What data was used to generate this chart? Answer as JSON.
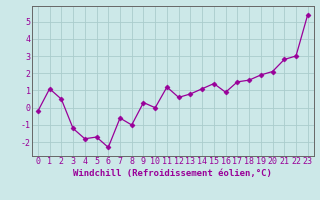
{
  "x": [
    0,
    1,
    2,
    3,
    4,
    5,
    6,
    7,
    8,
    9,
    10,
    11,
    12,
    13,
    14,
    15,
    16,
    17,
    18,
    19,
    20,
    21,
    22,
    23
  ],
  "y": [
    -0.2,
    1.1,
    0.5,
    -1.2,
    -1.8,
    -1.7,
    -2.3,
    -0.6,
    -1.0,
    0.3,
    0.0,
    1.2,
    0.6,
    0.8,
    1.1,
    1.4,
    0.9,
    1.5,
    1.6,
    1.9,
    2.1,
    2.8,
    3.0,
    5.4
  ],
  "line_color": "#990099",
  "marker": "D",
  "marker_size": 2.5,
  "bg_color": "#cce8e8",
  "grid_color": "#aacccc",
  "xlabel": "Windchill (Refroidissement éolien,°C)",
  "xlabel_fontsize": 6.5,
  "tick_fontsize": 6.0,
  "xlim": [
    -0.5,
    23.5
  ],
  "ylim": [
    -2.8,
    5.9
  ],
  "yticks": [
    -2,
    -1,
    0,
    1,
    2,
    3,
    4,
    5
  ],
  "xticks": [
    0,
    1,
    2,
    3,
    4,
    5,
    6,
    7,
    8,
    9,
    10,
    11,
    12,
    13,
    14,
    15,
    16,
    17,
    18,
    19,
    20,
    21,
    22,
    23
  ]
}
